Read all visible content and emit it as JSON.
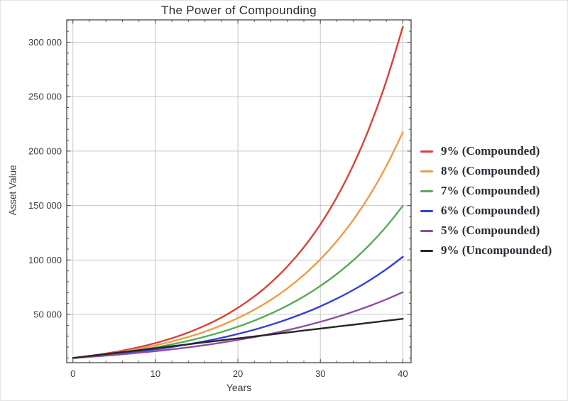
{
  "chart_data": {
    "type": "line",
    "title": "The Power of Compounding",
    "xlabel": "Years",
    "ylabel": "Asset Value",
    "x": [
      0,
      2,
      4,
      6,
      8,
      10,
      12,
      14,
      16,
      18,
      20,
      22,
      24,
      26,
      28,
      30,
      32,
      34,
      36,
      38,
      40
    ],
    "series": [
      {
        "name": "9% (Compounded)",
        "color": "#d9423a",
        "values": [
          10000,
          11881,
          14116,
          16771,
          19926,
          23674,
          28127,
          33417,
          39703,
          47171,
          56044,
          66586,
          79111,
          93992,
          111671,
          132677,
          157633,
          187284,
          222512,
          264367,
          314094
        ]
      },
      {
        "name": "8% (Compounded)",
        "color": "#ef9c48",
        "values": [
          10000,
          11664,
          13605,
          15869,
          18509,
          21589,
          25182,
          29372,
          34259,
          39960,
          46610,
          54365,
          63412,
          73964,
          86271,
          100627,
          117371,
          136901,
          159682,
          186253,
          217245
        ]
      },
      {
        "name": "7% (Compounded)",
        "color": "#58ab58",
        "values": [
          10000,
          11449,
          13108,
          15007,
          17182,
          19672,
          22522,
          25785,
          29522,
          33799,
          38697,
          44304,
          50724,
          58074,
          66488,
          76123,
          87153,
          99781,
          114239,
          130793,
          149745
        ]
      },
      {
        "name": "6% (Compounded)",
        "color": "#3340d8",
        "values": [
          10000,
          11236,
          12625,
          14185,
          15938,
          17908,
          20122,
          22609,
          25404,
          28543,
          32071,
          36035,
          40489,
          45494,
          51117,
          57435,
          64534,
          72510,
          81473,
          91543,
          102857
        ]
      },
      {
        "name": "5% (Compounded)",
        "color": "#8f4f9e",
        "values": [
          10000,
          11025,
          12155,
          13401,
          14775,
          16289,
          17959,
          19799,
          21829,
          24066,
          26533,
          29253,
          32251,
          35557,
          39201,
          43219,
          47649,
          52533,
          57918,
          63855,
          70400
        ]
      },
      {
        "name": "9% (Uncompounded)",
        "color": "#262626",
        "values": [
          10000,
          11800,
          13600,
          15400,
          17200,
          19000,
          20800,
          22600,
          24400,
          26200,
          28000,
          29800,
          31600,
          33400,
          35200,
          37000,
          38800,
          40600,
          42400,
          44200,
          46000
        ]
      }
    ],
    "xlim": [
      -0.75,
      41.0
    ],
    "ylim": [
      5700,
      320500
    ],
    "x_major_ticks": [
      0,
      10,
      20,
      30,
      40
    ],
    "x_tick_labels": [
      "0",
      "10",
      "20",
      "30",
      "40"
    ],
    "x_minor_step": 2,
    "y_major_ticks": [
      50000,
      100000,
      150000,
      200000,
      250000,
      300000
    ],
    "y_tick_labels": [
      "50 000",
      "100 000",
      "150 000",
      "200 000",
      "250 000",
      "300 000"
    ],
    "y_minor_step": 10000,
    "grid": true,
    "grid_color": "#c8c8c8",
    "frame_color": "#545454",
    "text_color": "#3a3a3a",
    "legend_position": "right",
    "line_width": 2.4
  }
}
